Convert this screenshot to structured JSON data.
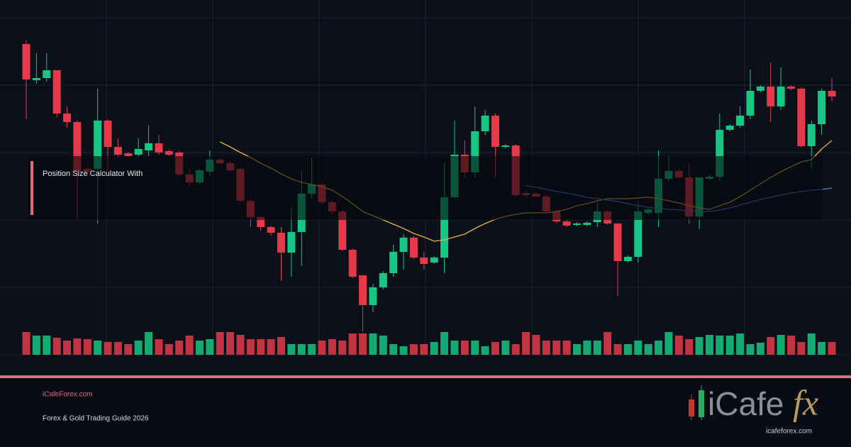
{
  "chart_data": {
    "type": "candlestick",
    "up_color": "#16c784",
    "down_color": "#e5394a",
    "ylim": [
      0,
      475
    ],
    "open": [
      438,
      387,
      390,
      401,
      340,
      328,
      262,
      262,
      330,
      293,
      284,
      282,
      288,
      298,
      287,
      285,
      254,
      243,
      258,
      275,
      270,
      262,
      217,
      194,
      180,
      172,
      144,
      173,
      227,
      240,
      215,
      202,
      148,
      112,
      70,
      95,
      115,
      145,
      165,
      137,
      130,
      137,
      222,
      282,
      257,
      315,
      337,
      293,
      295,
      228,
      227,
      223,
      202,
      188,
      183,
      183,
      187,
      202,
      185,
      132,
      138,
      200,
      200,
      248,
      259,
      250,
      195,
      248,
      251,
      317,
      323,
      337,
      372,
      378,
      350,
      378,
      375,
      294,
      325,
      372
    ],
    "high": [
      443,
      425,
      425,
      401,
      350,
      330,
      264,
      375,
      332,
      305,
      286,
      305,
      323,
      310,
      289,
      287,
      262,
      262,
      288,
      278,
      272,
      264,
      219,
      196,
      182,
      180,
      208,
      260,
      278,
      242,
      218,
      204,
      150,
      112,
      100,
      118,
      155,
      170,
      167,
      145,
      139,
      270,
      330,
      302,
      350,
      345,
      340,
      297,
      297,
      230,
      229,
      225,
      204,
      190,
      187,
      188,
      215,
      204,
      185,
      140,
      215,
      207,
      288,
      280,
      262,
      270,
      250,
      253,
      340,
      325,
      350,
      402,
      380,
      412,
      405,
      380,
      377,
      330,
      375,
      390
    ],
    "low": [
      332,
      382,
      385,
      335,
      320,
      190,
      256,
      185,
      260,
      278,
      278,
      278,
      280,
      282,
      280,
      252,
      238,
      240,
      252,
      268,
      258,
      215,
      180,
      175,
      168,
      104,
      110,
      125,
      220,
      212,
      198,
      146,
      108,
      33,
      60,
      92,
      110,
      120,
      135,
      120,
      128,
      115,
      220,
      250,
      250,
      310,
      250,
      291,
      223,
      223,
      221,
      200,
      185,
      180,
      181,
      181,
      180,
      183,
      83,
      130,
      130,
      198,
      180,
      244,
      248,
      185,
      177,
      246,
      245,
      315,
      320,
      332,
      370,
      328,
      345,
      373,
      292,
      263,
      310,
      357
    ],
    "close": [
      388,
      390,
      401,
      340,
      328,
      258,
      258,
      330,
      293,
      282,
      280,
      290,
      298,
      285,
      282,
      254,
      243,
      260,
      275,
      270,
      260,
      217,
      194,
      180,
      172,
      144,
      173,
      227,
      240,
      215,
      202,
      148,
      110,
      70,
      95,
      115,
      145,
      165,
      137,
      128,
      137,
      222,
      282,
      257,
      315,
      337,
      293,
      295,
      225,
      225,
      223,
      202,
      188,
      182,
      185,
      186,
      202,
      185,
      132,
      138,
      202,
      205,
      248,
      259,
      250,
      195,
      250,
      251,
      317,
      323,
      337,
      372,
      378,
      350,
      378,
      375,
      294,
      325,
      372,
      364
    ],
    "volume": [
      32,
      27,
      27,
      24,
      20,
      23,
      22,
      20,
      18,
      18,
      15,
      20,
      32,
      22,
      15,
      20,
      27,
      20,
      22,
      32,
      32,
      28,
      22,
      22,
      22,
      25,
      15,
      15,
      15,
      20,
      22,
      20,
      30,
      30,
      30,
      27,
      15,
      12,
      15,
      15,
      18,
      32,
      20,
      20,
      20,
      12,
      18,
      20,
      15,
      32,
      28,
      20,
      20,
      20,
      15,
      20,
      20,
      32,
      15,
      15,
      20,
      15,
      20,
      32,
      27,
      22,
      25,
      28,
      27,
      27,
      30,
      15,
      17,
      25,
      28,
      27,
      18,
      30,
      18,
      18
    ],
    "series": [
      {
        "color": "#e8b339",
        "values": [
          null,
          null,
          null,
          null,
          null,
          null,
          null,
          null,
          null,
          null,
          null,
          null,
          null,
          null,
          null,
          null,
          null,
          null,
          null,
          300,
          293,
          285,
          278,
          270,
          263,
          255,
          248,
          243,
          240,
          237,
          232,
          223,
          213,
          202,
          196,
          190,
          184,
          178,
          171,
          166,
          160,
          162,
          166,
          170,
          178,
          185,
          191,
          195,
          198,
          200,
          200,
          200,
          202,
          205,
          210,
          213,
          217,
          220,
          220,
          220,
          221,
          222,
          220,
          217,
          214,
          210,
          207,
          205,
          210,
          215,
          223,
          232,
          241,
          250,
          258,
          265,
          272,
          275,
          290,
          302
        ]
      },
      {
        "color": "#4f7fd6",
        "values": [
          null,
          null,
          null,
          null,
          null,
          null,
          null,
          null,
          null,
          null,
          null,
          null,
          null,
          null,
          null,
          null,
          null,
          null,
          null,
          null,
          null,
          null,
          null,
          null,
          null,
          null,
          null,
          null,
          null,
          null,
          null,
          null,
          null,
          null,
          null,
          null,
          null,
          null,
          null,
          null,
          null,
          null,
          null,
          null,
          null,
          null,
          null,
          null,
          null,
          238,
          236,
          233,
          230,
          228,
          225,
          222,
          220,
          218,
          216,
          213,
          210,
          208,
          206,
          205,
          204,
          203,
          202,
          202,
          204,
          207,
          211,
          215,
          219,
          222,
          225,
          228,
          230,
          232,
          233,
          235
        ]
      }
    ]
  },
  "banner": {
    "title": "Position Size Calculator With"
  },
  "footer": {
    "site": "iCafeForex.com",
    "subtitle": "Forex & Gold Trading Guide 2026"
  },
  "logo": {
    "brand": "iCafe",
    "accent": "fx",
    "url": "icafeforex.com"
  }
}
